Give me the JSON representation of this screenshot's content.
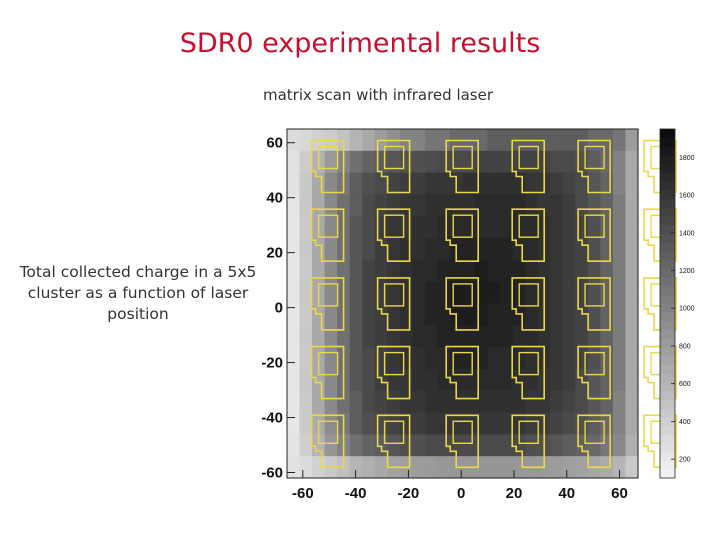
{
  "slide": {
    "title": "SDR0 experimental results",
    "subtitle": "matrix scan with infrared laser",
    "caption": "Total collected charge in a 5x5 cluster as a function of laser position"
  },
  "chart_data": {
    "type": "heatmap",
    "title": "matrix scan with infrared laser",
    "xlabel": "",
    "ylabel": "",
    "xlim": [
      -66,
      67
    ],
    "ylim": [
      -62,
      65
    ],
    "x_ticks": [
      -60,
      -40,
      -20,
      0,
      20,
      40,
      60
    ],
    "y_ticks": [
      -60,
      -40,
      -20,
      0,
      20,
      40,
      60
    ],
    "z_ticks": [
      200,
      400,
      600,
      800,
      1000,
      1200,
      1400,
      1600,
      1800
    ],
    "zlim": [
      100,
      1950
    ],
    "colormap": "grayscale-inverted",
    "grid": false,
    "overlay": {
      "shape": "pixel-outline",
      "color": "#e8d84a",
      "columns_x": [
        -51,
        -26,
        0,
        25,
        50,
        75
      ],
      "rows_y": [
        51,
        26,
        1,
        -24,
        -49
      ],
      "note_shape_offsets": "outer rectangle with notch and inner rectangle"
    },
    "cells": [
      [
        300,
        330,
        380,
        420,
        500,
        600,
        700,
        800,
        900,
        1000,
        1000,
        1100,
        1100,
        1200,
        1200,
        1200,
        1300,
        1300,
        1300,
        1300,
        1300,
        1300,
        1300,
        1300,
        1200,
        1200,
        1100,
        800
      ],
      [
        250,
        420,
        620,
        820,
        1000,
        1150,
        1250,
        1300,
        1350,
        1380,
        1400,
        1420,
        1450,
        1450,
        1450,
        1500,
        1500,
        1500,
        1500,
        1500,
        1500,
        1450,
        1450,
        1400,
        1300,
        1200,
        1000,
        700
      ],
      [
        250,
        450,
        700,
        950,
        1100,
        1300,
        1400,
        1450,
        1500,
        1550,
        1550,
        1600,
        1600,
        1600,
        1650,
        1650,
        1650,
        1650,
        1650,
        1600,
        1600,
        1550,
        1500,
        1450,
        1350,
        1250,
        1000,
        700
      ],
      [
        220,
        450,
        700,
        950,
        1150,
        1300,
        1450,
        1500,
        1550,
        1600,
        1600,
        1650,
        1650,
        1650,
        1650,
        1700,
        1700,
        1700,
        1700,
        1650,
        1600,
        1600,
        1550,
        1450,
        1350,
        1250,
        1050,
        700
      ],
      [
        220,
        440,
        700,
        950,
        1150,
        1350,
        1450,
        1550,
        1600,
        1600,
        1650,
        1650,
        1700,
        1700,
        1700,
        1700,
        1700,
        1700,
        1700,
        1700,
        1650,
        1600,
        1550,
        1500,
        1400,
        1250,
        1050,
        700
      ],
      [
        220,
        450,
        700,
        950,
        1150,
        1350,
        1450,
        1550,
        1600,
        1650,
        1650,
        1700,
        1700,
        1750,
        1750,
        1750,
        1750,
        1750,
        1700,
        1700,
        1650,
        1600,
        1550,
        1500,
        1400,
        1250,
        1050,
        700
      ],
      [
        220,
        440,
        700,
        950,
        1150,
        1350,
        1500,
        1550,
        1600,
        1650,
        1700,
        1700,
        1750,
        1750,
        1750,
        1800,
        1750,
        1750,
        1750,
        1700,
        1650,
        1600,
        1550,
        1500,
        1400,
        1250,
        1050,
        700
      ],
      [
        220,
        450,
        700,
        950,
        1150,
        1350,
        1500,
        1550,
        1600,
        1650,
        1700,
        1750,
        1750,
        1800,
        1800,
        1800,
        1800,
        1750,
        1750,
        1700,
        1650,
        1600,
        1550,
        1500,
        1400,
        1250,
        1050,
        700
      ],
      [
        220,
        440,
        700,
        950,
        1150,
        1350,
        1500,
        1550,
        1600,
        1650,
        1700,
        1750,
        1750,
        1800,
        1800,
        1800,
        1750,
        1750,
        1750,
        1700,
        1650,
        1600,
        1550,
        1500,
        1400,
        1250,
        1050,
        700
      ],
      [
        220,
        450,
        700,
        950,
        1150,
        1350,
        1500,
        1550,
        1600,
        1650,
        1700,
        1700,
        1750,
        1750,
        1750,
        1750,
        1750,
        1750,
        1700,
        1700,
        1650,
        1600,
        1550,
        1500,
        1400,
        1250,
        1050,
        700
      ],
      [
        220,
        440,
        700,
        950,
        1150,
        1350,
        1450,
        1550,
        1600,
        1650,
        1650,
        1700,
        1700,
        1750,
        1750,
        1750,
        1700,
        1700,
        1700,
        1650,
        1650,
        1600,
        1550,
        1500,
        1400,
        1250,
        1050,
        700
      ],
      [
        220,
        450,
        700,
        950,
        1150,
        1350,
        1450,
        1550,
        1600,
        1600,
        1650,
        1650,
        1700,
        1700,
        1700,
        1700,
        1700,
        1700,
        1650,
        1650,
        1600,
        1600,
        1550,
        1450,
        1350,
        1250,
        1050,
        700
      ],
      [
        220,
        440,
        700,
        950,
        1150,
        1300,
        1450,
        1500,
        1550,
        1600,
        1600,
        1650,
        1650,
        1650,
        1650,
        1650,
        1650,
        1650,
        1650,
        1600,
        1600,
        1550,
        1500,
        1450,
        1350,
        1250,
        1000,
        700
      ],
      [
        220,
        430,
        680,
        930,
        1100,
        1300,
        1400,
        1450,
        1500,
        1550,
        1550,
        1600,
        1600,
        1600,
        1600,
        1600,
        1600,
        1600,
        1600,
        1550,
        1550,
        1500,
        1450,
        1400,
        1300,
        1200,
        1000,
        700
      ],
      [
        230,
        400,
        620,
        850,
        1000,
        1150,
        1250,
        1300,
        1350,
        1400,
        1400,
        1450,
        1450,
        1450,
        1450,
        1450,
        1450,
        1450,
        1450,
        1400,
        1400,
        1350,
        1300,
        1250,
        1200,
        1100,
        950,
        650
      ],
      [
        250,
        300,
        380,
        450,
        520,
        600,
        650,
        700,
        750,
        780,
        800,
        820,
        830,
        850,
        850,
        850,
        850,
        850,
        840,
        830,
        820,
        800,
        780,
        750,
        720,
        680,
        600,
        450
      ]
    ]
  }
}
